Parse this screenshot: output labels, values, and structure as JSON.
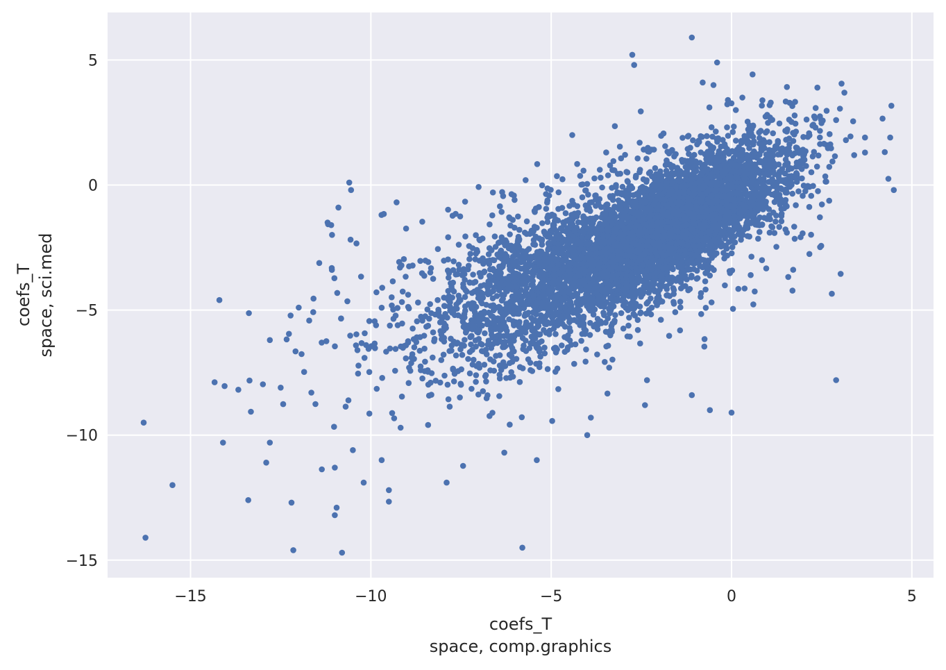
{
  "chart_data": {
    "type": "scatter",
    "title": "",
    "xlabel": "coefs_T\nspace, comp.graphics",
    "ylabel": "coefs_T\nspace, sci.med",
    "xlabel_lines": [
      "coefs_T",
      "space, comp.graphics"
    ],
    "ylabel_lines": [
      "coefs_T",
      "space, sci.med"
    ],
    "xlim": [
      -17.3,
      5.6
    ],
    "ylim": [
      -15.7,
      6.9
    ],
    "xticks": [
      -15,
      -10,
      -5,
      0,
      5
    ],
    "yticks": [
      5,
      0,
      -5,
      -10,
      -15
    ],
    "xtick_labels": [
      "−15",
      "−10",
      "−5",
      "0",
      "5"
    ],
    "ytick_labels": [
      "5",
      "0",
      "−5",
      "−10",
      "−15"
    ],
    "grid": true,
    "legend": "none",
    "colors": {
      "background": "#EAEAF2",
      "grid": "#FFFFFF",
      "marker": "#4C72B0",
      "text": "#262626"
    },
    "approximate_point_count": 6000,
    "distribution": {
      "description_of_visible_cloud": "dense elliptical cloud, densest core near x=-1, y=-1; correlated positively",
      "core_center": [
        -1.2,
        -1.2
      ],
      "secondary_center": [
        -4.5,
        -3.5
      ]
    },
    "notable_points": [
      [
        -16.3,
        -9.5
      ],
      [
        -16.25,
        -14.1
      ],
      [
        -15.5,
        -12.0
      ],
      [
        -14.2,
        -4.6
      ],
      [
        -14.1,
        -10.3
      ],
      [
        -13.4,
        -12.6
      ],
      [
        -12.9,
        -11.1
      ],
      [
        -12.8,
        -10.3
      ],
      [
        -12.8,
        -6.2
      ],
      [
        -12.5,
        -8.1
      ],
      [
        -12.2,
        -12.7
      ],
      [
        -12.15,
        -14.6
      ],
      [
        -12.0,
        -4.9
      ],
      [
        -11.2,
        -1.5
      ],
      [
        -11.1,
        -1.6
      ],
      [
        -10.9,
        -0.9
      ],
      [
        -10.8,
        -14.7
      ],
      [
        -10.6,
        0.1
      ],
      [
        -10.55,
        -0.2
      ],
      [
        -11.0,
        -11.3
      ],
      [
        -11.0,
        -13.2
      ],
      [
        -10.95,
        -12.9
      ],
      [
        -10.5,
        -10.6
      ],
      [
        -10.2,
        -11.9
      ],
      [
        -9.5,
        -12.2
      ],
      [
        -9.7,
        -11.0
      ],
      [
        -7.9,
        -11.9
      ],
      [
        -5.8,
        -14.5
      ],
      [
        -2.7,
        4.8
      ],
      [
        -1.1,
        5.9
      ],
      [
        -0.4,
        4.9
      ],
      [
        -0.5,
        4.0
      ],
      [
        -0.8,
        4.1
      ],
      [
        0.3,
        3.5
      ],
      [
        -0.1,
        3.4
      ],
      [
        2.9,
        2.6
      ],
      [
        3.7,
        1.9
      ],
      [
        4.4,
        1.9
      ],
      [
        4.5,
        -0.2
      ],
      [
        4.35,
        0.25
      ],
      [
        3.7,
        1.3
      ],
      [
        2.9,
        -7.8
      ],
      [
        0.0,
        -9.1
      ],
      [
        -0.6,
        -9.0
      ],
      [
        -1.1,
        -8.4
      ],
      [
        -4.0,
        -10.0
      ],
      [
        -3.9,
        -9.3
      ],
      [
        -5.4,
        -11.0
      ],
      [
        -6.3,
        -10.7
      ],
      [
        -2.4,
        -8.8
      ]
    ]
  }
}
